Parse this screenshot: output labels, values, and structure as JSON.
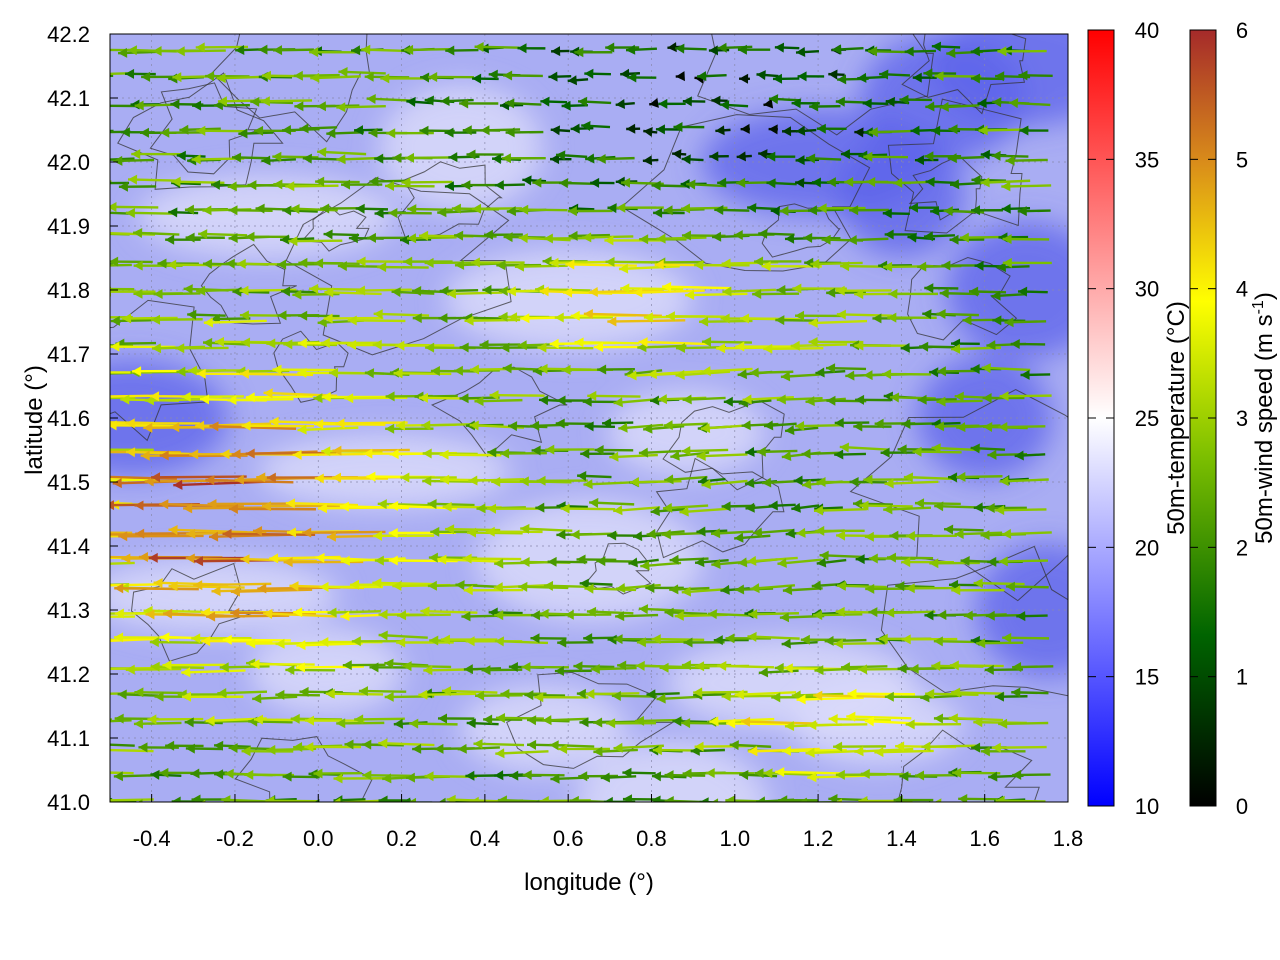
{
  "chart_data": {
    "type": "heatmap",
    "title": "",
    "xlabel": "longitude (°)",
    "ylabel": "latitude (°)",
    "xlim": [
      -0.5,
      1.8
    ],
    "ylim": [
      41.0,
      42.2
    ],
    "xticks": [
      "-0.4",
      "-0.2",
      "0.0",
      "0.2",
      "0.4",
      "0.6",
      "0.8",
      "1.0",
      "1.2",
      "1.4",
      "1.6",
      "1.8"
    ],
    "yticks": [
      "41.0",
      "41.1",
      "41.2",
      "41.3",
      "41.4",
      "41.5",
      "41.6",
      "41.7",
      "41.8",
      "41.9",
      "42.0",
      "42.1",
      "42.2"
    ],
    "grid": true,
    "layers": [
      "temperature field (color map)",
      "terrain contour lines",
      "wind vector arrows colored by speed"
    ],
    "colorbars": [
      {
        "label": "50m-temperature (°C)",
        "min": 10,
        "max": 40,
        "ticks": [
          "10",
          "15",
          "20",
          "25",
          "30",
          "35",
          "40"
        ],
        "colors": [
          "#0000ff",
          "#ffffff",
          "#ff0000"
        ]
      },
      {
        "label": "50m-wind speed (m s-1)",
        "label_main": "50m-wind speed (m s",
        "label_sup": "-1",
        "label_end": ")",
        "min": 0,
        "max": 6,
        "ticks": [
          "0",
          "1",
          "2",
          "3",
          "4",
          "5",
          "6"
        ],
        "colors": [
          "#000000",
          "#006400",
          "#7cbf00",
          "#ffff00",
          "#d98c1a",
          "#a52a2a"
        ]
      }
    ],
    "temperature_field_summary": {
      "range_c": [
        15,
        23
      ],
      "warmer_areas": "central and southwestern part of the domain",
      "cooler_areas": "northeastern corner and eastern edge"
    },
    "wind_field_summary": {
      "dominant_direction": "westward (from east)",
      "max_speed_regions": "western side near longitude -0.5 to 0.4, latitude 41.2-41.7",
      "speed_range": [
        0,
        6
      ]
    }
  }
}
